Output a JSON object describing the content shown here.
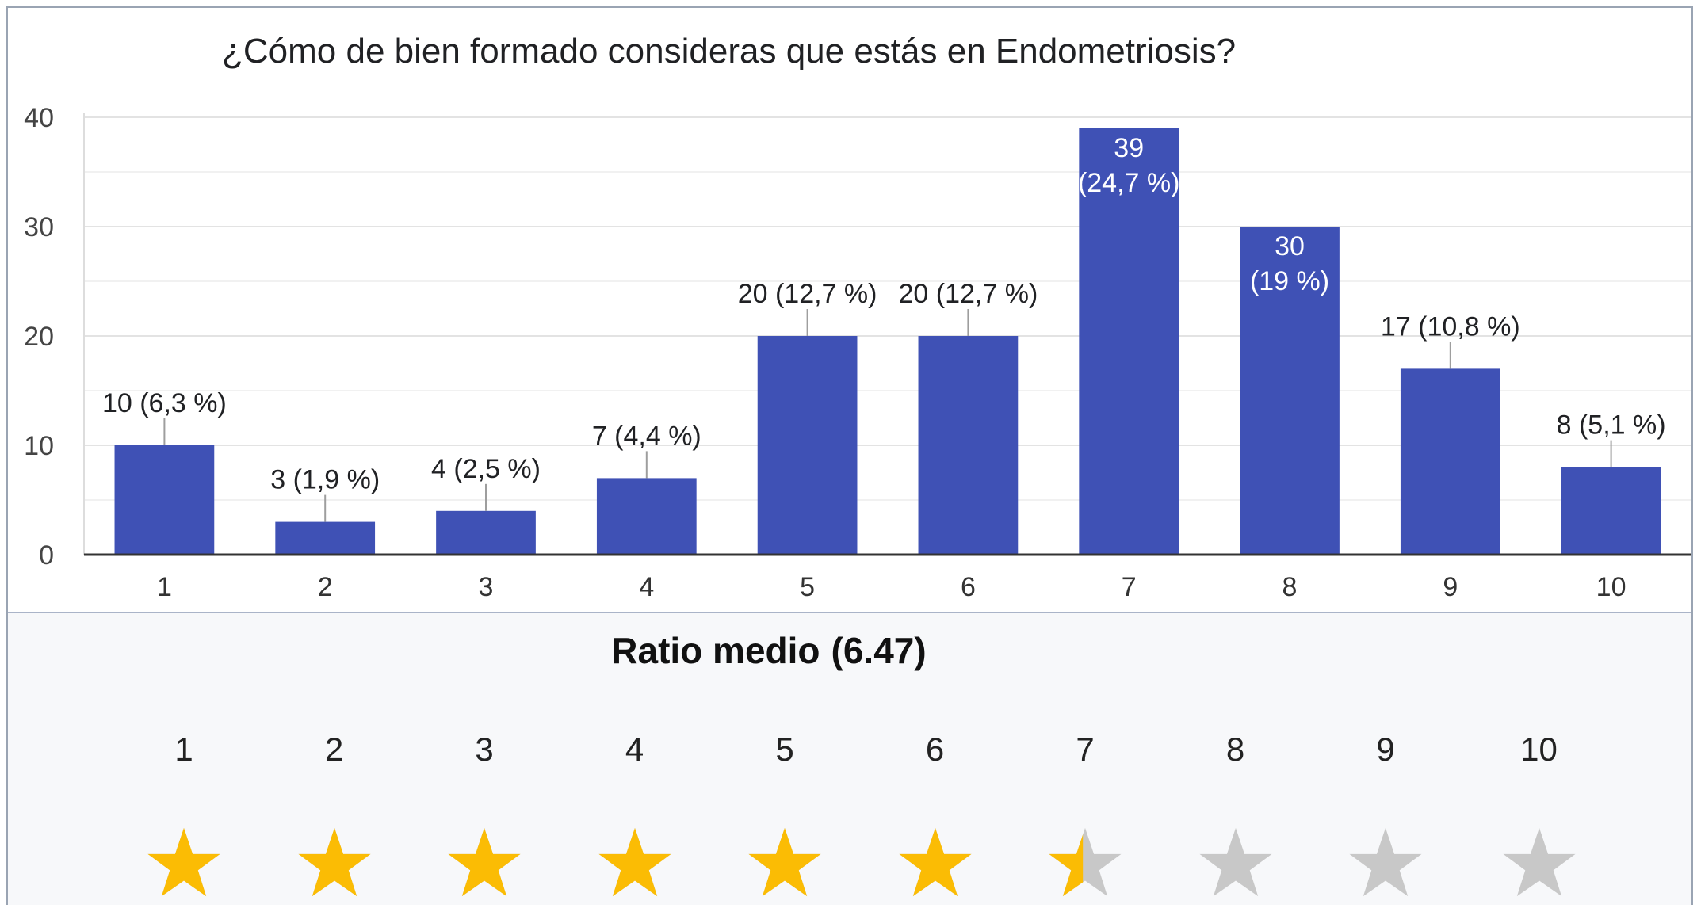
{
  "chart_data": {
    "type": "bar",
    "title": "¿Cómo de bien formado consideras que estás en Endometriosis?",
    "categories": [
      "1",
      "2",
      "3",
      "4",
      "5",
      "6",
      "7",
      "8",
      "9",
      "10"
    ],
    "values": [
      10,
      3,
      4,
      7,
      20,
      20,
      39,
      30,
      17,
      8
    ],
    "data_labels": [
      "10 (6,3 %)",
      "3 (1,9 %)",
      "4 (2,5 %)",
      "7 (4,4 %)",
      "20 (12,7 %)",
      "20 (12,7 %)",
      "39 (24,7 %)",
      "30 (19 %)",
      "17 (10,8 %)",
      "8 (5,1 %)"
    ],
    "ylim": [
      0,
      40
    ],
    "yticks": [
      0,
      10,
      20,
      30,
      40
    ],
    "xlabel": "",
    "ylabel": "",
    "grid": true,
    "bar_color": "#3f51b5"
  },
  "rating": {
    "label": "Ratio medio",
    "value_text": "(6.47)",
    "value": 6.47,
    "max": 10,
    "numbers": [
      "1",
      "2",
      "3",
      "4",
      "5",
      "6",
      "7",
      "8",
      "9",
      "10"
    ],
    "filled_color": "#fbbc04",
    "empty_color": "#c8c8c8",
    "star_icon": "star-icon"
  }
}
